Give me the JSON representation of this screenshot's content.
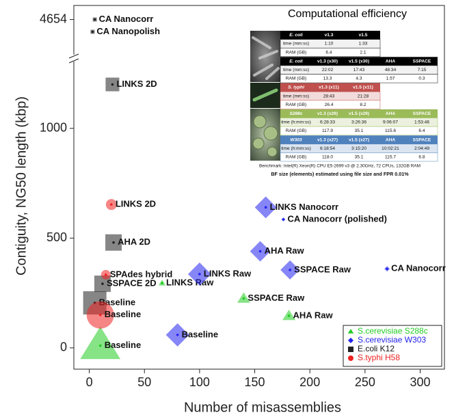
{
  "chart_data": {
    "type": "scatter",
    "x_label": "Number of misassemblies",
    "y_label": "Contiguity, NG50 length (kbp)",
    "xlim": [
      -14,
      322
    ],
    "xticks": [
      0,
      50,
      100,
      150,
      200,
      250,
      300
    ],
    "ylim": [
      -97,
      4670
    ],
    "y_break": [
      1320,
      4610
    ],
    "yticks": [
      0,
      500,
      1000,
      4654
    ],
    "legend": "lower right",
    "series": [
      {
        "name": "S.cerevisiae S288c",
        "color": "#22cc22",
        "marker": "triangle",
        "labels": [
          "Baseline",
          "LINKS Raw",
          "SSPACE Raw",
          "AHA Raw"
        ],
        "x": [
          10,
          66,
          140,
          181
        ],
        "values": [
          10,
          295,
          225,
          146
        ],
        "sizes": [
          28,
          5,
          9,
          9
        ]
      },
      {
        "name": "S.cerevisiae W303",
        "color": "#2222ee",
        "marker": "diamond",
        "labels": [
          "Baseline",
          "LINKS Raw",
          "AHA Raw",
          "SSPACE Raw",
          "LINKS Nanocorr",
          "CA Nanocorr (polished)",
          "CA Nanocorr"
        ],
        "x": [
          80,
          100,
          155,
          182,
          160,
          176,
          270
        ],
        "values": [
          59,
          336,
          440,
          355,
          640,
          585,
          360
        ],
        "sizes": [
          17,
          17,
          15,
          14,
          16,
          3,
          4
        ]
      },
      {
        "name": "E.coli K12",
        "color": "#222222",
        "marker": "square",
        "labels": [
          "CA Nanocorr",
          "CA Nanopolish",
          "LINKS 2D",
          "AHA 2D",
          "SSPACE 2D",
          "Baseline"
        ],
        "x": [
          5,
          3,
          21,
          22,
          12,
          5
        ],
        "values": [
          4654,
          4640,
          1200,
          480,
          292,
          205
        ],
        "sizes": [
          3,
          3,
          10,
          12,
          12,
          17
        ]
      },
      {
        "name": "S.typhi H58",
        "color": "#ee2222",
        "marker": "circle",
        "labels": [
          "LINKS 2D",
          "SPAdes hybrid",
          "Baseline"
        ],
        "x": [
          20,
          15,
          10
        ],
        "values": [
          653,
          333,
          150
        ],
        "sizes": [
          8,
          7,
          20
        ]
      }
    ],
    "inset": {
      "title": "Computational efficiency",
      "tables": [
        {
          "color": "#000000",
          "tint": "#f2f2f2",
          "header": [
            "E. coli",
            "v1.3",
            "v1.5"
          ],
          "rows": [
            [
              "time (mm:ss)",
              "1:10",
              "1:33"
            ],
            [
              "RAM (GB)",
              "6.4",
              "2.1"
            ]
          ]
        },
        {
          "color": "#000000",
          "tint": "#f2f2f2",
          "header": [
            "E. coli",
            "v1.3 (x30)",
            "v1.5 (x30)",
            "AHA",
            "SSPACE"
          ],
          "rows": [
            [
              "time (mm:ss)",
              "22:02",
              "17:43",
              "48:34",
              "7:15"
            ],
            [
              "RAM (GB)",
              "13.3",
              "4.3",
              "1.57",
              "0.3"
            ]
          ]
        },
        {
          "color": "#c0504d",
          "tint": "#f2dcdb",
          "header": [
            "S. typhi",
            "v1.3 (x11)",
            "v1.5 (x11)"
          ],
          "rows": [
            [
              "time (mm:ss)",
              "28:43",
              "21:28"
            ],
            [
              "RAM (GB)",
              "26.4",
              "8.2"
            ]
          ]
        },
        {
          "color": "#9bbb59",
          "tint": "#ebf1de",
          "header": [
            "S288c",
            "v1.3 (x29)",
            "v1.5 (x29)",
            "AHA",
            "SSPACE"
          ],
          "rows": [
            [
              "time (h:mm:ss)",
              "6:28:33",
              "3:26:36",
              "9:06:07",
              "1:53:46"
            ],
            [
              "RAM (GB)",
              "117.9",
              "35.1",
              "115.6",
              "6.4"
            ]
          ]
        },
        {
          "color": "#4f81bd",
          "tint": "#dbe5f1",
          "header": [
            "W303",
            "v1.3 (x27)",
            "v1.5 (x27)",
            "AHA",
            "SSPACE"
          ],
          "rows": [
            [
              "time (h:mm:ss)",
              "6:18:54",
              "3:15:20",
              "10:02:21",
              "2:04:49"
            ],
            [
              "RAM (GB)",
              "118.0",
              "35.1",
              "115.7",
              "6.8"
            ]
          ]
        }
      ],
      "footnote": "Benchmark: Intel(R) Xeon(R) CPU E5-2699 v3 @ 2.30GHz, 72 CPUs, 132GB RAM",
      "note": "BF size (elements) estimated using file size and FPR 0.01%"
    }
  }
}
